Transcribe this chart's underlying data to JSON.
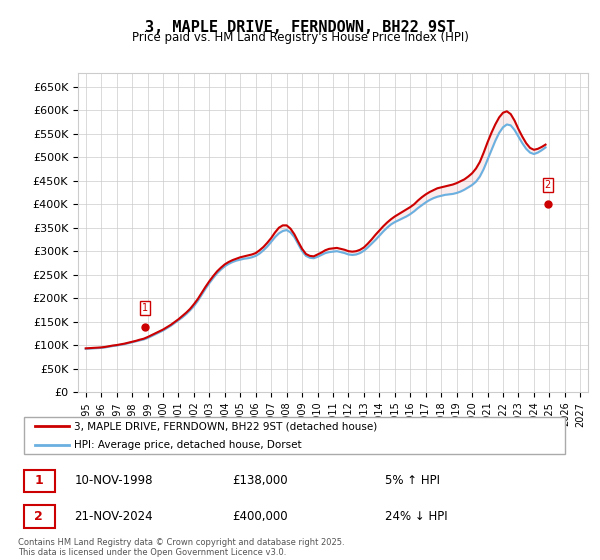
{
  "title": "3, MAPLE DRIVE, FERNDOWN, BH22 9ST",
  "subtitle": "Price paid vs. HM Land Registry's House Price Index (HPI)",
  "ylabel": "",
  "ylim": [
    0,
    680000
  ],
  "yticks": [
    0,
    50000,
    100000,
    150000,
    200000,
    250000,
    300000,
    350000,
    400000,
    450000,
    500000,
    550000,
    600000,
    650000
  ],
  "ytick_labels": [
    "£0",
    "£50K",
    "£100K",
    "£150K",
    "£200K",
    "£250K",
    "£300K",
    "£350K",
    "£400K",
    "£450K",
    "£500K",
    "£550K",
    "£600K",
    "£650K"
  ],
  "xlim_start": 1994.5,
  "xlim_end": 2027.5,
  "xticks": [
    1995,
    1996,
    1997,
    1998,
    1999,
    2000,
    2001,
    2002,
    2003,
    2004,
    2005,
    2006,
    2007,
    2008,
    2009,
    2010,
    2011,
    2012,
    2013,
    2014,
    2015,
    2016,
    2017,
    2018,
    2019,
    2020,
    2021,
    2022,
    2023,
    2024,
    2025,
    2026,
    2027
  ],
  "hpi_color": "#6ab0e0",
  "price_color": "#cc0000",
  "annotation_box_color": "#cc0000",
  "legend_box_color": "#cc0000",
  "background_color": "#ffffff",
  "grid_color": "#cccccc",
  "sale1_x": 1998.86,
  "sale1_y": 138000,
  "sale1_label": "1",
  "sale2_x": 2024.9,
  "sale2_y": 400000,
  "sale2_label": "2",
  "legend1": "3, MAPLE DRIVE, FERNDOWN, BH22 9ST (detached house)",
  "legend2": "HPI: Average price, detached house, Dorset",
  "note1_label": "1",
  "note1_date": "10-NOV-1998",
  "note1_price": "£138,000",
  "note1_hpi": "5% ↑ HPI",
  "note2_label": "2",
  "note2_date": "21-NOV-2024",
  "note2_price": "£400,000",
  "note2_hpi": "24% ↓ HPI",
  "footer": "Contains HM Land Registry data © Crown copyright and database right 2025.\nThis data is licensed under the Open Government Licence v3.0.",
  "hpi_years": [
    1995.0,
    1995.25,
    1995.5,
    1995.75,
    1996.0,
    1996.25,
    1996.5,
    1996.75,
    1997.0,
    1997.25,
    1997.5,
    1997.75,
    1998.0,
    1998.25,
    1998.5,
    1998.75,
    1999.0,
    1999.25,
    1999.5,
    1999.75,
    2000.0,
    2000.25,
    2000.5,
    2000.75,
    2001.0,
    2001.25,
    2001.5,
    2001.75,
    2002.0,
    2002.25,
    2002.5,
    2002.75,
    2003.0,
    2003.25,
    2003.5,
    2003.75,
    2004.0,
    2004.25,
    2004.5,
    2004.75,
    2005.0,
    2005.25,
    2005.5,
    2005.75,
    2006.0,
    2006.25,
    2006.5,
    2006.75,
    2007.0,
    2007.25,
    2007.5,
    2007.75,
    2008.0,
    2008.25,
    2008.5,
    2008.75,
    2009.0,
    2009.25,
    2009.5,
    2009.75,
    2010.0,
    2010.25,
    2010.5,
    2010.75,
    2011.0,
    2011.25,
    2011.5,
    2011.75,
    2012.0,
    2012.25,
    2012.5,
    2012.75,
    2013.0,
    2013.25,
    2013.5,
    2013.75,
    2014.0,
    2014.25,
    2014.5,
    2014.75,
    2015.0,
    2015.25,
    2015.5,
    2015.75,
    2016.0,
    2016.25,
    2016.5,
    2016.75,
    2017.0,
    2017.25,
    2017.5,
    2017.75,
    2018.0,
    2018.25,
    2018.5,
    2018.75,
    2019.0,
    2019.25,
    2019.5,
    2019.75,
    2020.0,
    2020.25,
    2020.5,
    2020.75,
    2021.0,
    2021.25,
    2021.5,
    2021.75,
    2022.0,
    2022.25,
    2022.5,
    2022.75,
    2023.0,
    2023.25,
    2023.5,
    2023.75,
    2024.0,
    2024.25,
    2024.5,
    2024.75
  ],
  "hpi_values": [
    92000,
    92500,
    93000,
    93500,
    94000,
    95000,
    96500,
    98000,
    99000,
    100500,
    102000,
    104000,
    106000,
    108000,
    110000,
    112000,
    115000,
    119000,
    123000,
    127000,
    131000,
    136000,
    141000,
    147000,
    153000,
    159000,
    166000,
    174000,
    183000,
    194000,
    207000,
    220000,
    232000,
    243000,
    253000,
    261000,
    268000,
    273000,
    277000,
    280000,
    282000,
    284000,
    285000,
    287000,
    290000,
    295000,
    302000,
    310000,
    320000,
    330000,
    338000,
    343000,
    345000,
    340000,
    330000,
    315000,
    300000,
    290000,
    286000,
    285000,
    288000,
    292000,
    296000,
    298000,
    299000,
    300000,
    298000,
    296000,
    293000,
    292000,
    293000,
    296000,
    301000,
    308000,
    316000,
    324000,
    333000,
    342000,
    350000,
    357000,
    362000,
    366000,
    370000,
    374000,
    379000,
    385000,
    392000,
    398000,
    404000,
    409000,
    413000,
    416000,
    418000,
    420000,
    421000,
    422000,
    424000,
    427000,
    431000,
    436000,
    441000,
    448000,
    459000,
    475000,
    495000,
    515000,
    535000,
    552000,
    564000,
    570000,
    568000,
    558000,
    544000,
    530000,
    518000,
    510000,
    507000,
    510000,
    515000,
    521000
  ],
  "price_years": [
    1995.0,
    1995.25,
    1995.5,
    1995.75,
    1996.0,
    1996.25,
    1996.5,
    1996.75,
    1997.0,
    1997.25,
    1997.5,
    1997.75,
    1998.0,
    1998.25,
    1998.5,
    1998.75,
    1999.0,
    1999.25,
    1999.5,
    1999.75,
    2000.0,
    2000.25,
    2000.5,
    2000.75,
    2001.0,
    2001.25,
    2001.5,
    2001.75,
    2002.0,
    2002.25,
    2002.5,
    2002.75,
    2003.0,
    2003.25,
    2003.5,
    2003.75,
    2004.0,
    2004.25,
    2004.5,
    2004.75,
    2005.0,
    2005.25,
    2005.5,
    2005.75,
    2006.0,
    2006.25,
    2006.5,
    2006.75,
    2007.0,
    2007.25,
    2007.5,
    2007.75,
    2008.0,
    2008.25,
    2008.5,
    2008.75,
    2009.0,
    2009.25,
    2009.5,
    2009.75,
    2010.0,
    2010.25,
    2010.5,
    2010.75,
    2011.0,
    2011.25,
    2011.5,
    2011.75,
    2012.0,
    2012.25,
    2012.5,
    2012.75,
    2013.0,
    2013.25,
    2013.5,
    2013.75,
    2014.0,
    2014.25,
    2014.5,
    2014.75,
    2015.0,
    2015.25,
    2015.5,
    2015.75,
    2016.0,
    2016.25,
    2016.5,
    2016.75,
    2017.0,
    2017.25,
    2017.5,
    2017.75,
    2018.0,
    2018.25,
    2018.5,
    2018.75,
    2019.0,
    2019.25,
    2019.5,
    2019.75,
    2020.0,
    2020.25,
    2020.5,
    2020.75,
    2021.0,
    2021.25,
    2021.5,
    2021.75,
    2022.0,
    2022.25,
    2022.5,
    2022.75,
    2023.0,
    2023.25,
    2023.5,
    2023.75,
    2024.0,
    2024.25,
    2024.5,
    2024.75
  ],
  "price_values": [
    93000,
    93500,
    94000,
    94500,
    95000,
    96000,
    97500,
    99000,
    100000,
    101500,
    103000,
    105000,
    107000,
    109000,
    111500,
    113500,
    117000,
    121000,
    125000,
    129000,
    133000,
    138000,
    143000,
    149000,
    155000,
    162000,
    169000,
    177000,
    187000,
    198000,
    211000,
    224000,
    236000,
    247000,
    257000,
    265000,
    272000,
    277000,
    281000,
    284000,
    287000,
    289000,
    291000,
    293000,
    296000,
    302000,
    309000,
    318000,
    328000,
    340000,
    350000,
    355000,
    355000,
    348000,
    336000,
    320000,
    305000,
    294000,
    290000,
    289000,
    293000,
    297000,
    302000,
    305000,
    306000,
    307000,
    305000,
    303000,
    300000,
    299000,
    300000,
    303000,
    308000,
    316000,
    325000,
    335000,
    344000,
    353000,
    361000,
    368000,
    374000,
    379000,
    384000,
    389000,
    394000,
    400000,
    408000,
    415000,
    421000,
    426000,
    430000,
    434000,
    436000,
    438000,
    440000,
    442000,
    445000,
    449000,
    453000,
    459000,
    466000,
    476000,
    490000,
    510000,
    532000,
    552000,
    570000,
    585000,
    595000,
    598000,
    592000,
    578000,
    560000,
    544000,
    530000,
    520000,
    516000,
    518000,
    522000,
    527000
  ]
}
